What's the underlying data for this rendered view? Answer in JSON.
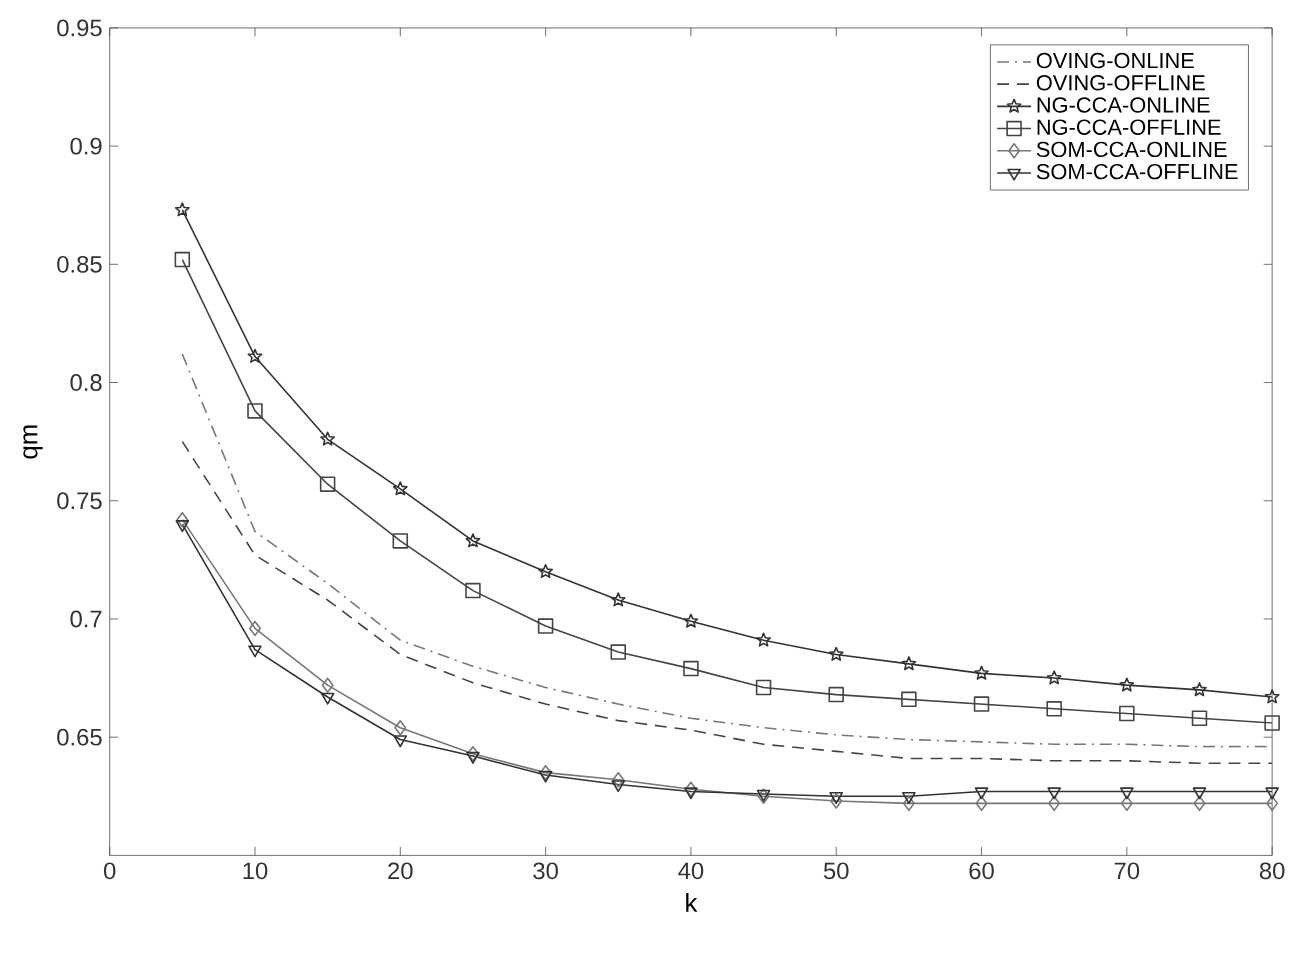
{
  "chart_data": {
    "type": "line",
    "xlabel": "k",
    "ylabel": "qm",
    "x": [
      5,
      10,
      15,
      20,
      25,
      30,
      35,
      40,
      45,
      50,
      55,
      60,
      65,
      70,
      75,
      80
    ],
    "xlim": [
      0,
      80
    ],
    "xticks": [
      0,
      10,
      20,
      30,
      40,
      50,
      60,
      70,
      80
    ],
    "ylim": [
      0.6,
      0.95
    ],
    "yticks": [
      0.65,
      0.7,
      0.75,
      0.8,
      0.85,
      0.9,
      0.95
    ],
    "grid": false,
    "legend": "top right",
    "series": [
      {
        "name": "OVING-ONLINE",
        "color": "#777777",
        "line_style": "dashdot",
        "marker": "none",
        "values": [
          0.812,
          0.737,
          0.715,
          0.691,
          0.68,
          0.671,
          0.664,
          0.658,
          0.654,
          0.651,
          0.649,
          0.648,
          0.647,
          0.647,
          0.646,
          0.646
        ]
      },
      {
        "name": "OVING-OFFLINE",
        "color": "#444444",
        "line_style": "dashed",
        "marker": "none",
        "values": [
          0.775,
          0.727,
          0.708,
          0.685,
          0.673,
          0.664,
          0.657,
          0.653,
          0.647,
          0.644,
          0.641,
          0.641,
          0.64,
          0.64,
          0.639,
          0.639
        ]
      },
      {
        "name": "NG-CCA-ONLINE",
        "color": "#333333",
        "line_style": "solid",
        "marker": "star",
        "values": [
          0.873,
          0.811,
          0.776,
          0.755,
          0.733,
          0.72,
          0.708,
          0.699,
          0.691,
          0.685,
          0.681,
          0.677,
          0.675,
          0.672,
          0.67,
          0.667
        ]
      },
      {
        "name": "NG-CCA-OFFLINE",
        "color": "#444444",
        "line_style": "solid",
        "marker": "square",
        "values": [
          0.852,
          0.788,
          0.757,
          0.733,
          0.712,
          0.697,
          0.686,
          0.679,
          0.671,
          0.668,
          0.666,
          0.664,
          0.662,
          0.66,
          0.658,
          0.656
        ]
      },
      {
        "name": "SOM-CCA-ONLINE",
        "color": "#777777",
        "line_style": "solid",
        "marker": "diamond",
        "values": [
          0.742,
          0.696,
          0.672,
          0.654,
          0.643,
          0.635,
          0.632,
          0.628,
          0.625,
          0.623,
          0.622,
          0.622,
          0.622,
          0.622,
          0.622,
          0.622
        ]
      },
      {
        "name": "SOM-CCA-OFFLINE",
        "color": "#333333",
        "line_style": "solid",
        "marker": "triangle",
        "values": [
          0.74,
          0.687,
          0.667,
          0.649,
          0.642,
          0.634,
          0.63,
          0.627,
          0.626,
          0.625,
          0.625,
          0.627,
          0.627,
          0.627,
          0.627,
          0.627
        ]
      }
    ]
  }
}
